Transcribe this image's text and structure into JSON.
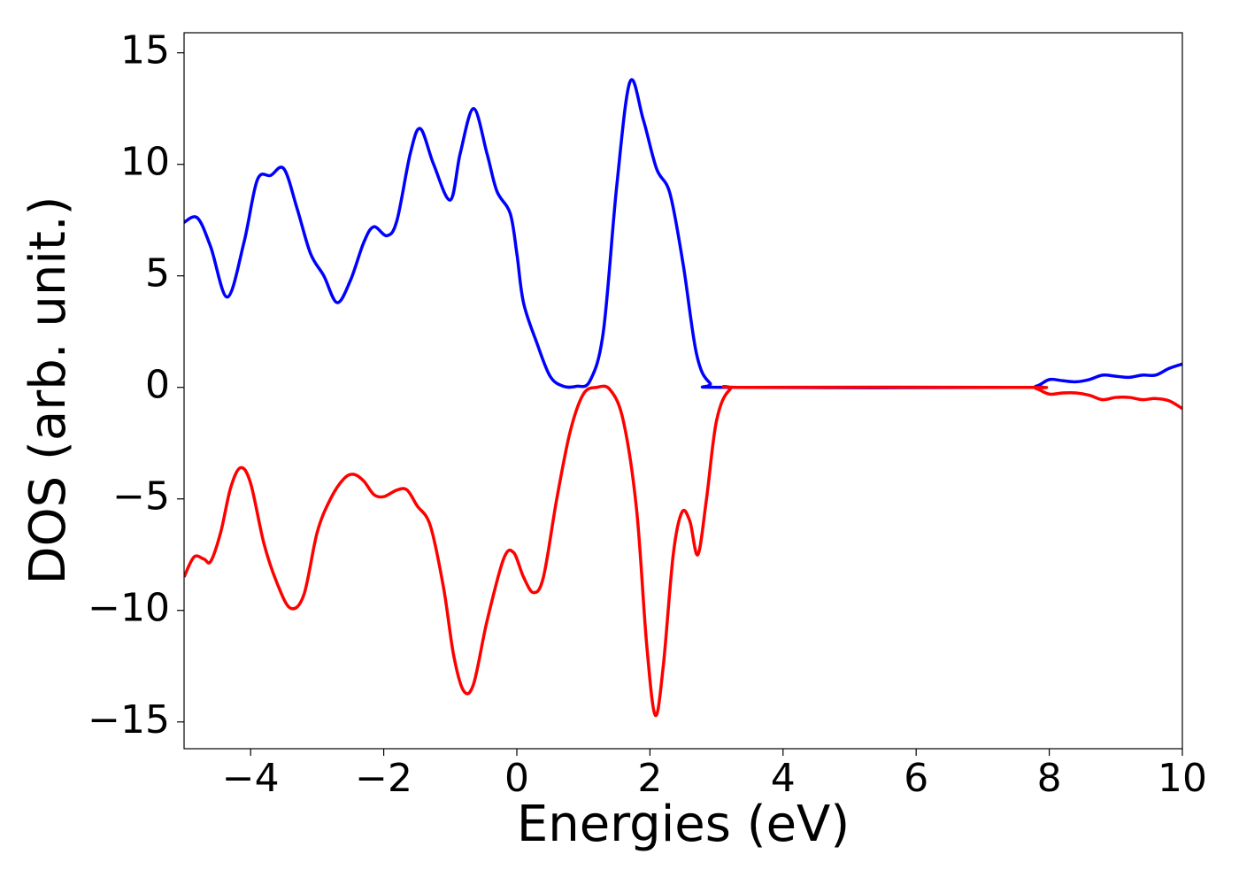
{
  "chart_data": {
    "type": "line",
    "x_label": "Energies (eV)",
    "y_label": "DOS (arb. unit.)",
    "xlim": [
      -5,
      10
    ],
    "ylim": [
      -16.2,
      15.9
    ],
    "xticks": [
      {
        "value": -4,
        "label": "−4"
      },
      {
        "value": -2,
        "label": "−2"
      },
      0,
      2,
      4,
      6,
      8,
      10
    ],
    "yticks": [
      {
        "value": -15,
        "label": "−15"
      },
      {
        "value": -10,
        "label": "−10"
      },
      {
        "value": -5,
        "label": "−5"
      },
      0,
      5,
      10,
      15
    ],
    "series": [
      {
        "color": "#0000ff",
        "x": [
          -5.0,
          -4.8,
          -4.6,
          -4.35,
          -4.1,
          -3.9,
          -3.7,
          -3.5,
          -3.3,
          -3.1,
          -2.9,
          -2.7,
          -2.5,
          -2.3,
          -2.15,
          -1.95,
          -1.8,
          -1.6,
          -1.45,
          -1.25,
          -1.0,
          -0.85,
          -0.65,
          -0.45,
          -0.3,
          -0.1,
          0.0,
          0.1,
          0.3,
          0.5,
          0.7,
          0.9,
          1.1,
          1.3,
          1.5,
          1.7,
          1.9,
          2.1,
          2.3,
          2.5,
          2.7,
          2.9,
          3.2,
          7.5,
          7.8,
          8.0,
          8.2,
          8.4,
          8.6,
          8.8,
          9.0,
          9.2,
          9.4,
          9.6,
          9.8,
          10.0
        ],
        "values": [
          7.4,
          7.6,
          6.3,
          4.05,
          6.5,
          9.3,
          9.5,
          9.8,
          8.0,
          6.0,
          5.0,
          3.8,
          4.8,
          6.5,
          7.2,
          6.8,
          7.5,
          10.5,
          11.6,
          10.0,
          8.4,
          10.5,
          12.5,
          10.5,
          8.8,
          7.8,
          6.0,
          3.8,
          2.0,
          0.5,
          0.05,
          0.05,
          0.3,
          2.5,
          9.0,
          13.7,
          12.0,
          9.8,
          8.7,
          5.5,
          1.5,
          0.2,
          0.0,
          0.0,
          0.05,
          0.35,
          0.3,
          0.25,
          0.35,
          0.55,
          0.5,
          0.45,
          0.55,
          0.55,
          0.85,
          1.05
        ]
      },
      {
        "color": "#ff0000",
        "x": [
          -5.0,
          -4.85,
          -4.7,
          -4.6,
          -4.45,
          -4.3,
          -4.15,
          -4.0,
          -3.8,
          -3.6,
          -3.4,
          -3.2,
          -3.0,
          -2.8,
          -2.6,
          -2.45,
          -2.3,
          -2.15,
          -2.0,
          -1.8,
          -1.65,
          -1.5,
          -1.3,
          -1.1,
          -0.95,
          -0.8,
          -0.65,
          -0.45,
          -0.2,
          -0.05,
          0.1,
          0.25,
          0.4,
          0.6,
          0.8,
          1.0,
          1.2,
          1.4,
          1.6,
          1.8,
          1.95,
          2.08,
          2.2,
          2.35,
          2.48,
          2.6,
          2.72,
          2.85,
          3.0,
          3.2,
          3.5,
          7.6,
          7.8,
          8.0,
          8.2,
          8.4,
          8.6,
          8.8,
          9.0,
          9.2,
          9.4,
          9.6,
          9.8,
          10.0
        ],
        "values": [
          -8.5,
          -7.6,
          -7.7,
          -7.8,
          -6.5,
          -4.5,
          -3.6,
          -4.3,
          -7.0,
          -8.8,
          -9.9,
          -9.3,
          -6.5,
          -5.0,
          -4.1,
          -3.9,
          -4.2,
          -4.8,
          -4.9,
          -4.6,
          -4.6,
          -5.3,
          -6.2,
          -9.0,
          -12.0,
          -13.6,
          -13.3,
          -10.5,
          -7.7,
          -7.4,
          -8.5,
          -9.2,
          -8.5,
          -5.0,
          -2.0,
          -0.3,
          0.0,
          -0.1,
          -1.5,
          -5.5,
          -11.5,
          -14.7,
          -12.5,
          -7.5,
          -5.6,
          -6.0,
          -7.5,
          -5.0,
          -1.5,
          -0.1,
          0.0,
          0.0,
          -0.05,
          -0.3,
          -0.25,
          -0.25,
          -0.35,
          -0.55,
          -0.45,
          -0.45,
          -0.55,
          -0.5,
          -0.6,
          -0.95
        ]
      }
    ]
  }
}
